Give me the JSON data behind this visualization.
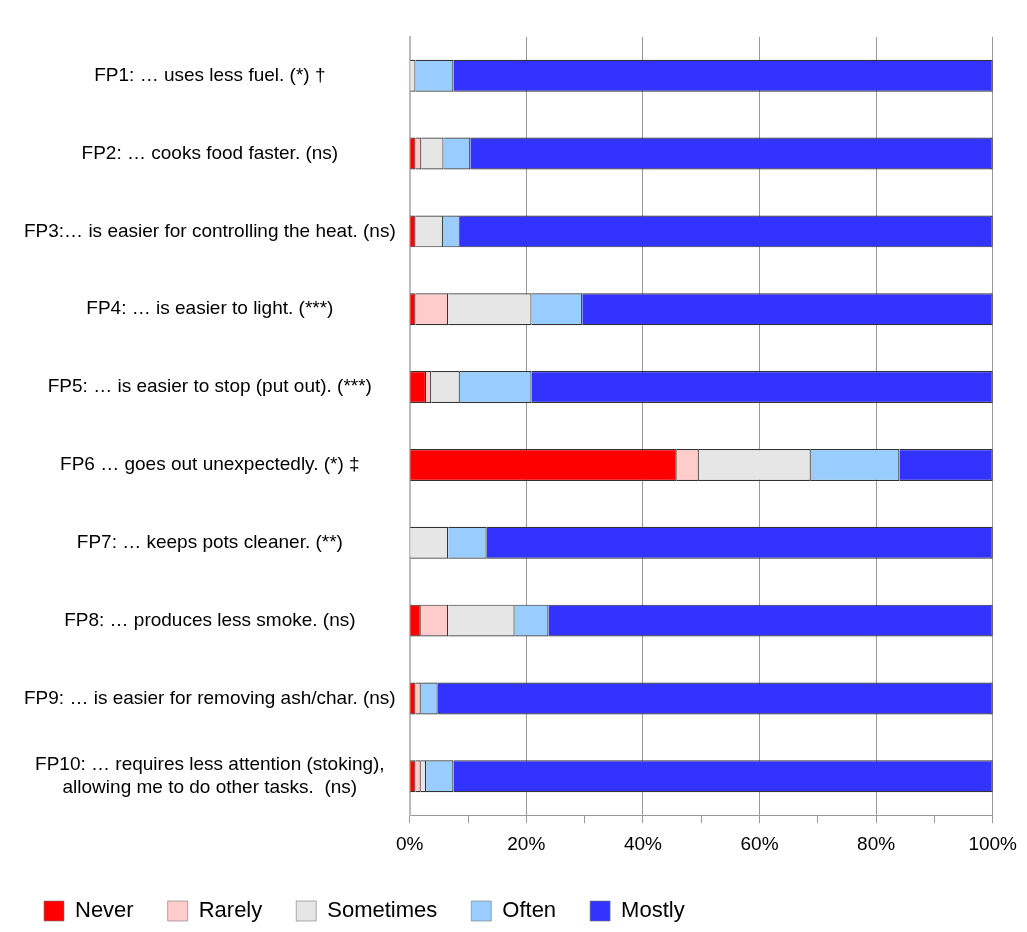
{
  "chart_data": {
    "type": "bar",
    "orientation": "horizontal",
    "stacked": true,
    "categories": [
      "FP1: … uses less fuel. (*) †",
      "FP2: … cooks food faster. (ns)",
      "FP3:… is easier for controlling the heat. (ns)",
      "FP4: … is easier to light. (***)",
      "FP5: … is easier to stop (put out). (***)",
      "FP6 … goes out unexpectedly. (*) ‡",
      "FP7: … keeps pots cleaner. (**)",
      "FP8: … produces less smoke. (ns)",
      "FP9: … is easier for removing ash/char. (ns)",
      "FP10: … requires less attention (stoking), allowing me to do other tasks.  (ns)"
    ],
    "series": [
      {
        "name": "Never",
        "color": "#ff0000",
        "values": [
          0,
          1,
          1,
          1,
          2.8,
          45.8,
          0,
          1.9,
          1,
          1
        ]
      },
      {
        "name": "Rarely",
        "color": "#ffcccc",
        "values": [
          0,
          1,
          0,
          5.6,
          0.9,
          3.8,
          0,
          4.7,
          0.9,
          0.9
        ]
      },
      {
        "name": "Sometimes",
        "color": "#e6e6e6",
        "values": [
          1,
          3.8,
          4.7,
          14.3,
          4.9,
          19.2,
          6.6,
          11.4,
          0,
          0.9
        ]
      },
      {
        "name": "Often",
        "color": "#99ccff",
        "values": [
          6.5,
          4.6,
          2.9,
          8.7,
          12.3,
          15.2,
          6.6,
          5.8,
          2.9,
          4.7
        ]
      },
      {
        "name": "Mostly",
        "color": "#3333ff",
        "values": [
          92.5,
          89.6,
          91.4,
          70.4,
          79.1,
          16.0,
          86.8,
          76.2,
          95.2,
          92.5
        ]
      }
    ],
    "xlim": [
      0,
      100
    ],
    "xticks": [
      {
        "value": 0,
        "label": "0%"
      },
      {
        "value": 10,
        "label": null
      },
      {
        "value": 20,
        "label": "20%"
      },
      {
        "value": 30,
        "label": null
      },
      {
        "value": 40,
        "label": "40%"
      },
      {
        "value": 50,
        "label": null
      },
      {
        "value": 60,
        "label": "60%"
      },
      {
        "value": 70,
        "label": null
      },
      {
        "value": 80,
        "label": "80%"
      },
      {
        "value": 90,
        "label": null
      },
      {
        "value": 100,
        "label": "100%"
      }
    ],
    "grid": "x",
    "legend": "bottom"
  }
}
